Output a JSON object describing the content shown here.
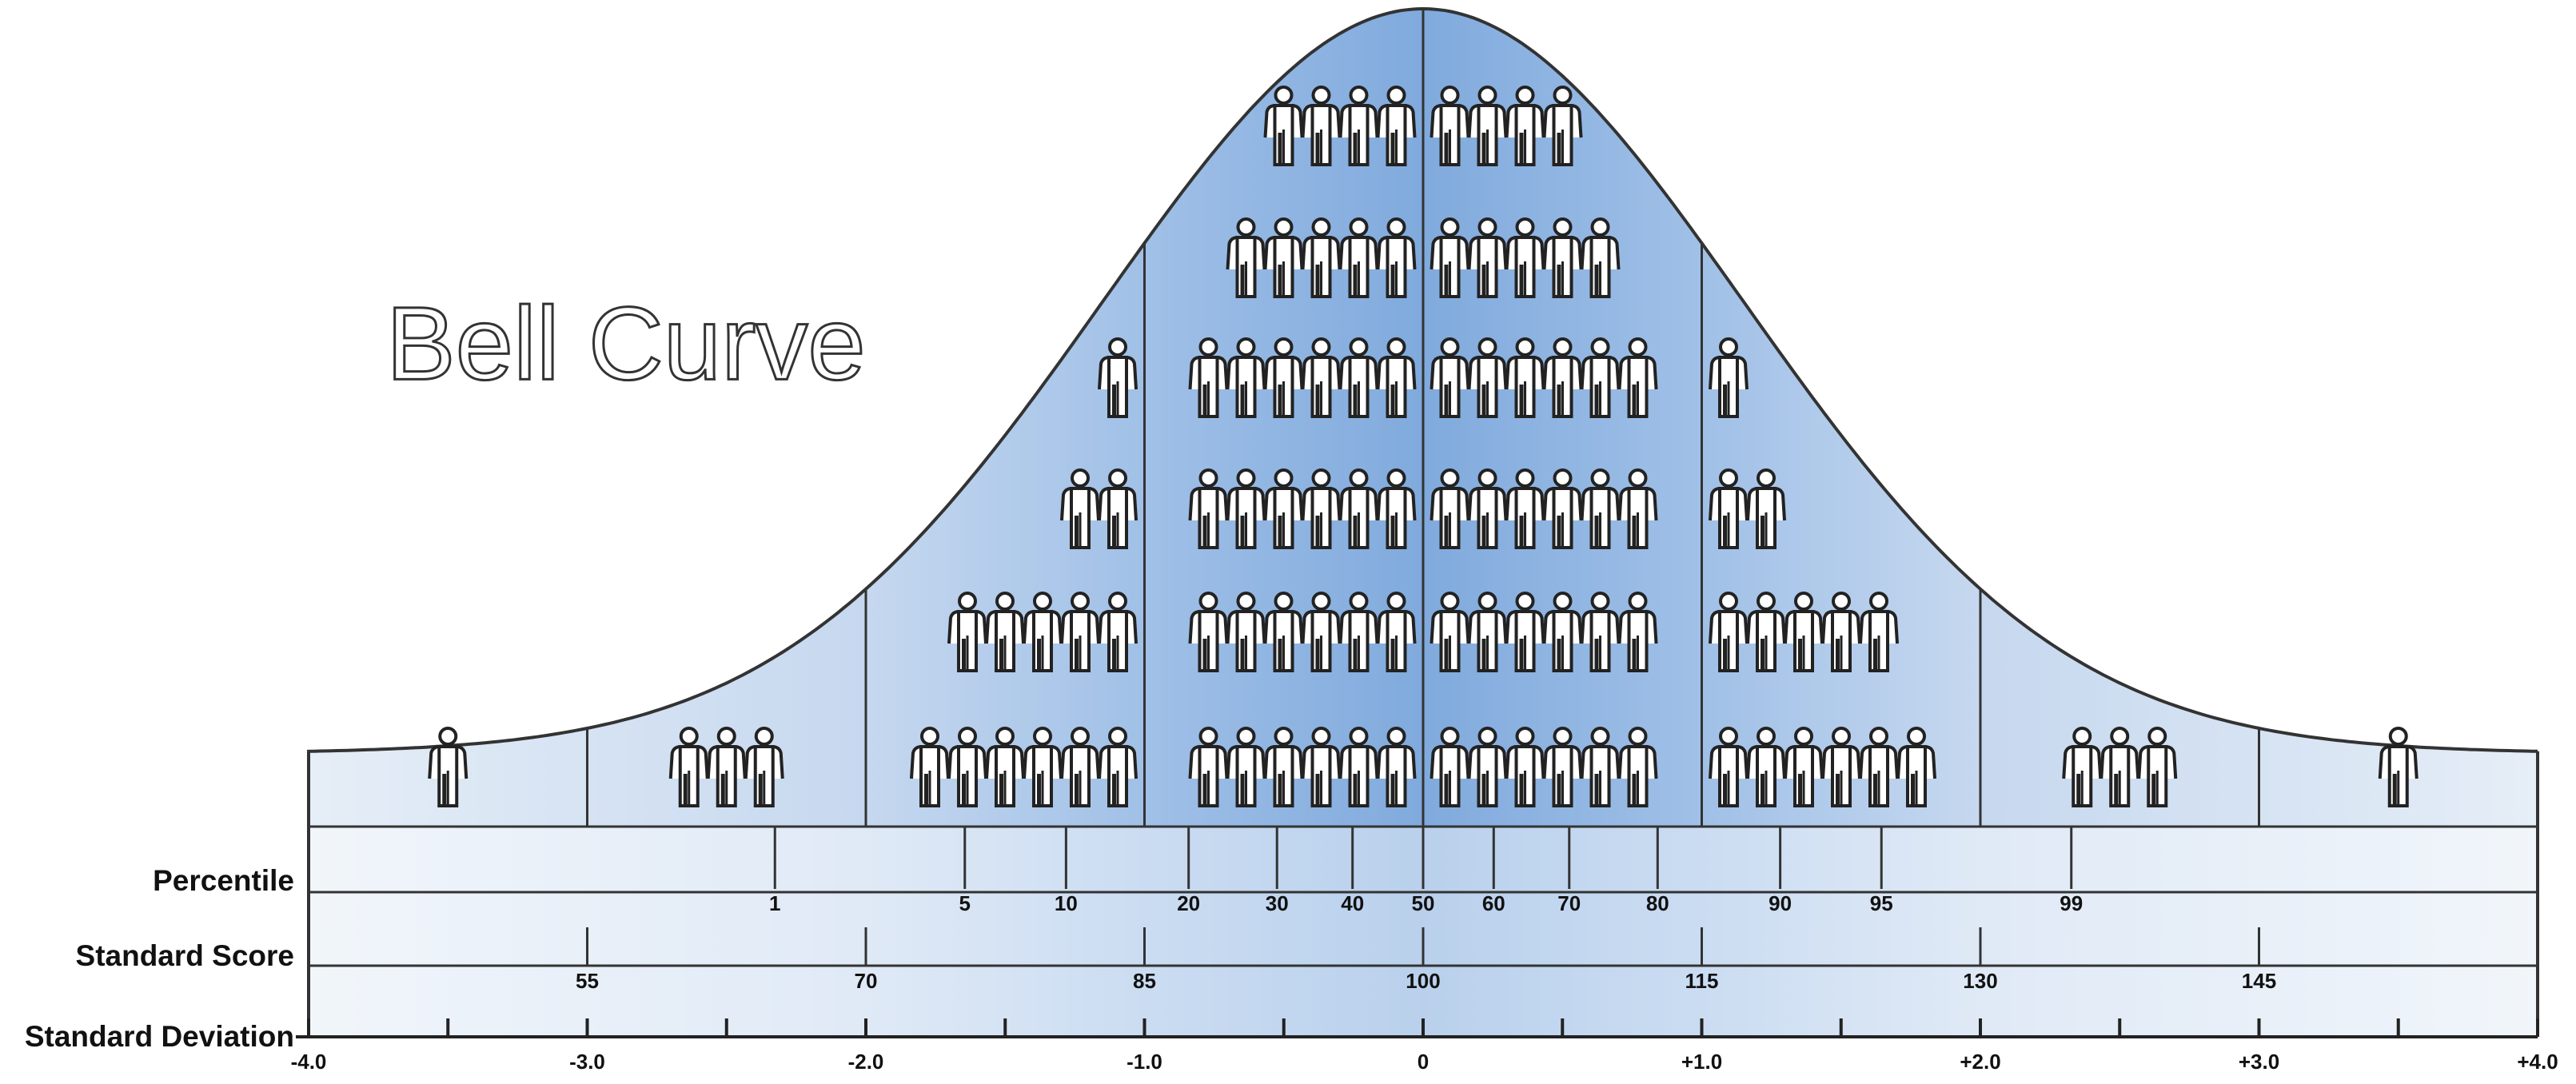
{
  "title": "Bell Curve",
  "rows": {
    "percentile": {
      "label": "Percentile",
      "ticks": [
        1,
        5,
        10,
        20,
        30,
        40,
        50,
        60,
        70,
        80,
        90,
        95,
        99
      ]
    },
    "standard_score": {
      "label": "Standard Score",
      "ticks": [
        55,
        70,
        85,
        100,
        115,
        130,
        145
      ]
    },
    "standard_deviation": {
      "label": "Standard Deviation",
      "ticks": [
        {
          "value": -4,
          "label": "-4.0"
        },
        {
          "value": -3,
          "label": "-3.0"
        },
        {
          "value": -2,
          "label": "-2.0"
        },
        {
          "value": -1,
          "label": "-1.0"
        },
        0,
        {
          "value": 1,
          "label": "+1.0"
        },
        {
          "value": 2,
          "label": "+2.0"
        },
        {
          "value": 3,
          "label": "+3.0"
        },
        {
          "value": 4,
          "label": "+4.0"
        }
      ]
    }
  }
}
